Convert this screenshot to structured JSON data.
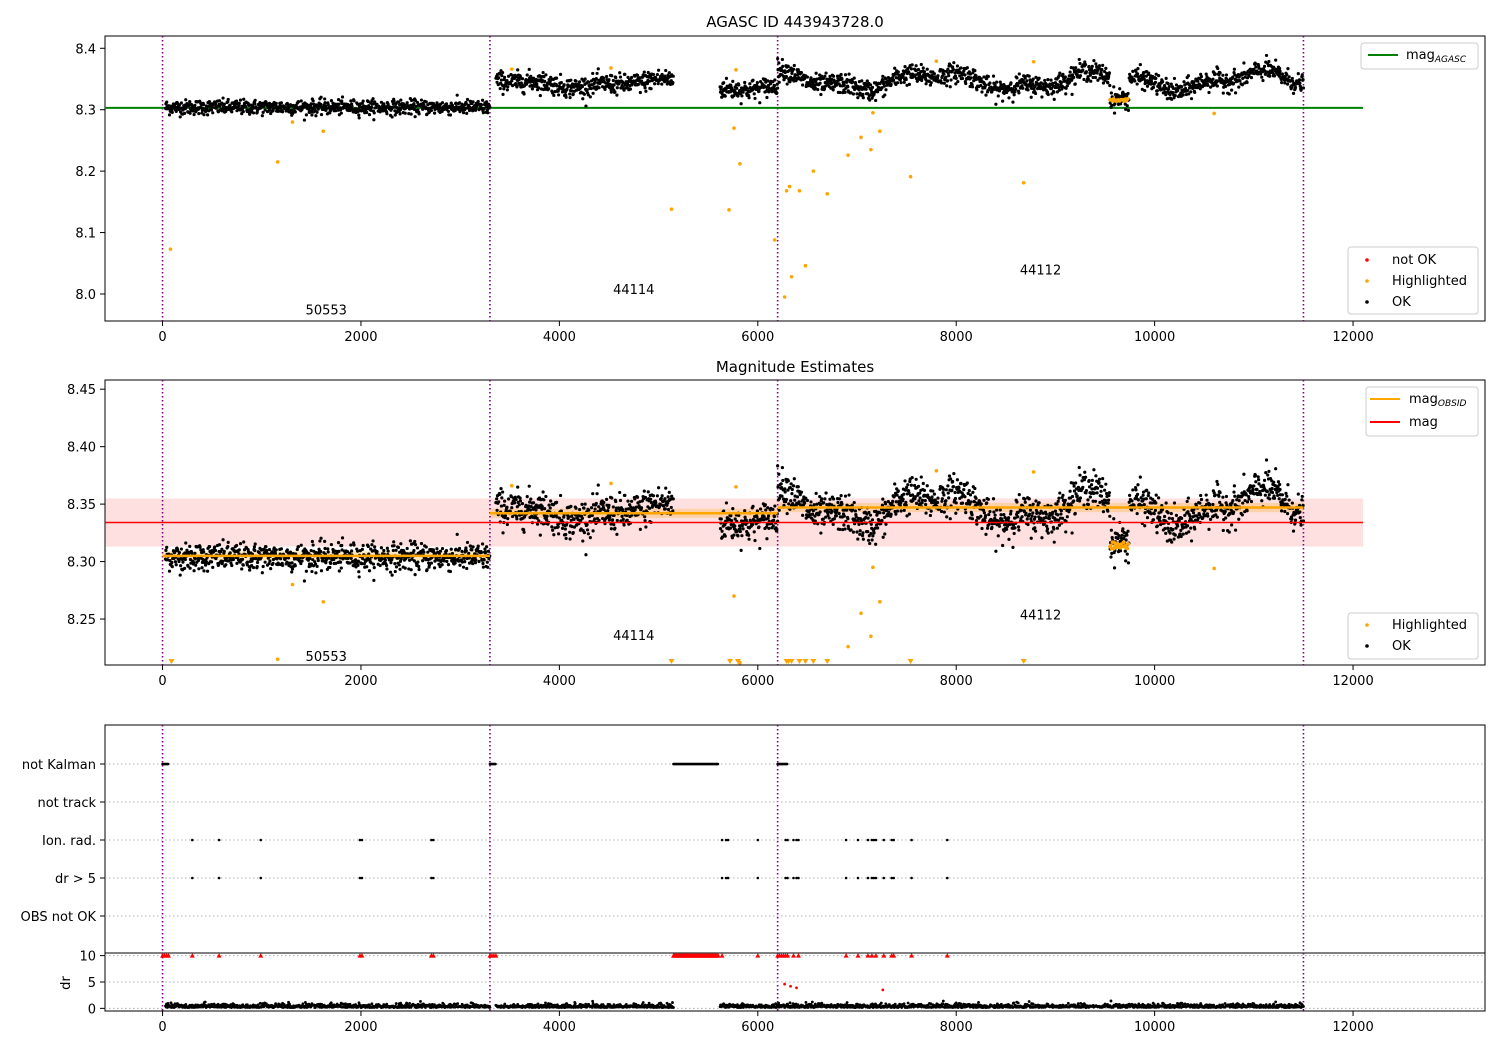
{
  "figure": {
    "panel1_title": "AGASC ID 443943728.0",
    "panel2_title": "Magnitude Estimates"
  },
  "chart_data": [
    {
      "type": "scatter",
      "title": "AGASC ID 443943728.0",
      "xlim": [
        -580,
        13330
      ],
      "ylim": [
        7.956,
        8.42
      ],
      "xticks": [
        0,
        2000,
        4000,
        6000,
        8000,
        10000,
        12000
      ],
      "xtick_labels": [
        "0",
        "2000",
        "4000",
        "6000",
        "8000",
        "10000",
        "12000"
      ],
      "yticks": [
        8.0,
        8.1,
        8.2,
        8.3,
        8.4
      ],
      "ytick_labels": [
        "8.0",
        "8.1",
        "8.2",
        "8.3",
        "8.4"
      ],
      "obsid_boundaries": [
        0,
        3300,
        6200,
        11500
      ],
      "obsid_labels": [
        {
          "text": "50553",
          "x": 1650,
          "y": 7.975
        },
        {
          "text": "44114",
          "x": 4750,
          "y": 8.008
        },
        {
          "text": "44112",
          "x": 8850,
          "y": 8.04
        }
      ],
      "segments": [
        {
          "x_start": 30,
          "x_end": 3300,
          "level": 8.304,
          "noise": 0.006,
          "wave": 0
        },
        {
          "x_start": 3360,
          "x_end": 5150,
          "level": 8.343,
          "noise": 0.008,
          "wave": 0.005
        },
        {
          "x_start": 5620,
          "x_end": 6200,
          "level": 8.336,
          "noise": 0.008,
          "wave": 0.004
        },
        {
          "x_start": 6200,
          "x_end": 11500,
          "level": 8.347,
          "noise": 0.008,
          "wave": 0.012
        }
      ],
      "dip": {
        "x_start": 9550,
        "x_end": 9740,
        "level": 8.318
      },
      "highlighted_outliers": [
        [
          80,
          8.073
        ],
        [
          1160,
          8.215
        ],
        [
          1310,
          8.28
        ],
        [
          1620,
          8.265
        ],
        [
          5130,
          8.138
        ],
        [
          5710,
          8.137
        ],
        [
          5820,
          8.212
        ],
        [
          5760,
          8.27
        ],
        [
          6170,
          8.088
        ],
        [
          6270,
          7.995
        ],
        [
          6290,
          8.168
        ],
        [
          6320,
          8.175
        ],
        [
          6340,
          8.028
        ],
        [
          6420,
          8.168
        ],
        [
          6480,
          8.046
        ],
        [
          6560,
          8.2
        ],
        [
          6700,
          8.163
        ],
        [
          6910,
          8.226
        ],
        [
          7040,
          8.255
        ],
        [
          7140,
          8.235
        ],
        [
          7160,
          8.295
        ],
        [
          7230,
          8.265
        ],
        [
          7540,
          8.191
        ],
        [
          8680,
          8.181
        ],
        [
          10600,
          8.294
        ],
        [
          5780,
          8.365
        ],
        [
          4520,
          8.368
        ],
        [
          3520,
          8.366
        ],
        [
          7800,
          8.379
        ],
        [
          8780,
          8.378
        ]
      ],
      "reference_lines": [
        {
          "name": "mag_AGASC",
          "value": 8.303,
          "x_start": -580,
          "x_end": 12100,
          "color": "#008000"
        }
      ],
      "legends": {
        "top_right": [
          {
            "label": "mag",
            "sub": "AGASC",
            "color": "#008000",
            "kind": "line"
          }
        ],
        "bottom_right": [
          {
            "label": "not OK",
            "color": "#ff0000",
            "kind": "point"
          },
          {
            "label": "Highlighted",
            "color": "#ffa500",
            "kind": "point"
          },
          {
            "label": "OK",
            "color": "#000000",
            "kind": "point"
          }
        ]
      },
      "colors": {
        "ok": "#000000",
        "highlighted": "#ffa500",
        "not_ok": "#ff0000",
        "boundary": "#800080"
      }
    },
    {
      "type": "scatter",
      "title": "Magnitude Estimates",
      "xlim": [
        -580,
        13330
      ],
      "ylim": [
        8.21,
        8.458
      ],
      "xticks": [
        0,
        2000,
        4000,
        6000,
        8000,
        10000,
        12000
      ],
      "xtick_labels": [
        "0",
        "2000",
        "4000",
        "6000",
        "8000",
        "10000",
        "12000"
      ],
      "yticks": [
        8.25,
        8.3,
        8.35,
        8.4,
        8.45
      ],
      "ytick_labels": [
        "8.25",
        "8.30",
        "8.35",
        "8.40",
        "8.45"
      ],
      "obsid_labels": [
        {
          "text": "50553",
          "x": 1650,
          "y": 8.218
        },
        {
          "text": "44114",
          "x": 4750,
          "y": 8.236
        },
        {
          "text": "44112",
          "x": 8850,
          "y": 8.254
        }
      ],
      "mag": {
        "value": 8.334,
        "band": [
          8.313,
          8.355
        ],
        "x_start": -580,
        "x_end": 12100,
        "color": "#ff0000"
      },
      "mag_obsid": [
        {
          "x_start": 0,
          "x_end": 3300,
          "value": 8.305
        },
        {
          "x_start": 3300,
          "x_end": 6200,
          "value": 8.342
        },
        {
          "x_start": 6200,
          "x_end": 11500,
          "value": 8.347
        }
      ],
      "clipped_markers_x": [
        90,
        5130,
        5720,
        5800,
        6290,
        6310,
        6340,
        6420,
        6480,
        6560,
        6700,
        7540,
        8680
      ],
      "legends": {
        "top_right": [
          {
            "label": "mag",
            "sub": "OBSID",
            "color": "#ffa500",
            "kind": "line"
          },
          {
            "label": "mag",
            "sub": "",
            "color": "#ff0000",
            "kind": "line"
          }
        ],
        "bottom_right": [
          {
            "label": "Highlighted",
            "color": "#ffa500",
            "kind": "point"
          },
          {
            "label": "OK",
            "color": "#000000",
            "kind": "point"
          }
        ]
      }
    },
    {
      "type": "scatter",
      "title": "",
      "xlim": [
        -580,
        13330
      ],
      "flag_categories": [
        "not Kalman",
        "not track",
        "Ion. rad.",
        "dr > 5",
        "OBS not OK"
      ],
      "flag_points": {
        "not Kalman": {
          "ranges": [
            [
              0,
              60
            ],
            [
              3300,
              3360
            ],
            [
              5150,
              5600
            ],
            [
              6200,
              6300
            ]
          ],
          "singles": []
        },
        "not track": {
          "ranges": [],
          "singles": []
        },
        "Ion. rad.": {
          "ranges": [],
          "singles": [
            300,
            570,
            990,
            1990,
            2010,
            2710,
            2730,
            5640,
            5680,
            5700,
            6000,
            6280,
            6300,
            6360,
            6390,
            6410,
            6890,
            7010,
            7110,
            7150,
            7170,
            7190,
            7270,
            7350,
            7370,
            7550,
            7910
          ]
        },
        "dr > 5": {
          "ranges": [],
          "singles": [
            300,
            570,
            990,
            1990,
            2010,
            2710,
            2730,
            5640,
            5680,
            5700,
            6000,
            6280,
            6300,
            6360,
            6390,
            6410,
            6890,
            7010,
            7110,
            7150,
            7170,
            7190,
            7270,
            7350,
            7370,
            7550,
            7910
          ]
        },
        "OBS not OK": {
          "ranges": [],
          "singles": []
        }
      },
      "dr": {
        "ylim": [
          -0.5,
          10.5
        ],
        "yticks": [
          0,
          5,
          10
        ],
        "ytick_labels": [
          "0",
          "5",
          "10"
        ],
        "ylabel": "dr",
        "clipped_x": [
          0,
          20,
          40,
          60,
          300,
          570,
          990,
          1990,
          2010,
          2710,
          2730,
          3300,
          3320,
          3340,
          3360,
          5640,
          6000,
          6200,
          6220,
          6240,
          6260,
          6280,
          6300,
          6360,
          6410,
          6890,
          7010,
          7110,
          7150,
          7190,
          7270,
          7350,
          7370,
          7550,
          7910
        ],
        "clipped_range": [
          5150,
          5600
        ],
        "red_mid_points": [
          [
            6270,
            4.6
          ],
          [
            6330,
            4.2
          ],
          [
            6390,
            3.9
          ],
          [
            7260,
            3.5
          ]
        ]
      },
      "xticks": [
        0,
        2000,
        4000,
        6000,
        8000,
        10000,
        12000
      ],
      "xtick_labels": [
        "0",
        "2000",
        "4000",
        "6000",
        "8000",
        "10000",
        "12000"
      ]
    }
  ]
}
